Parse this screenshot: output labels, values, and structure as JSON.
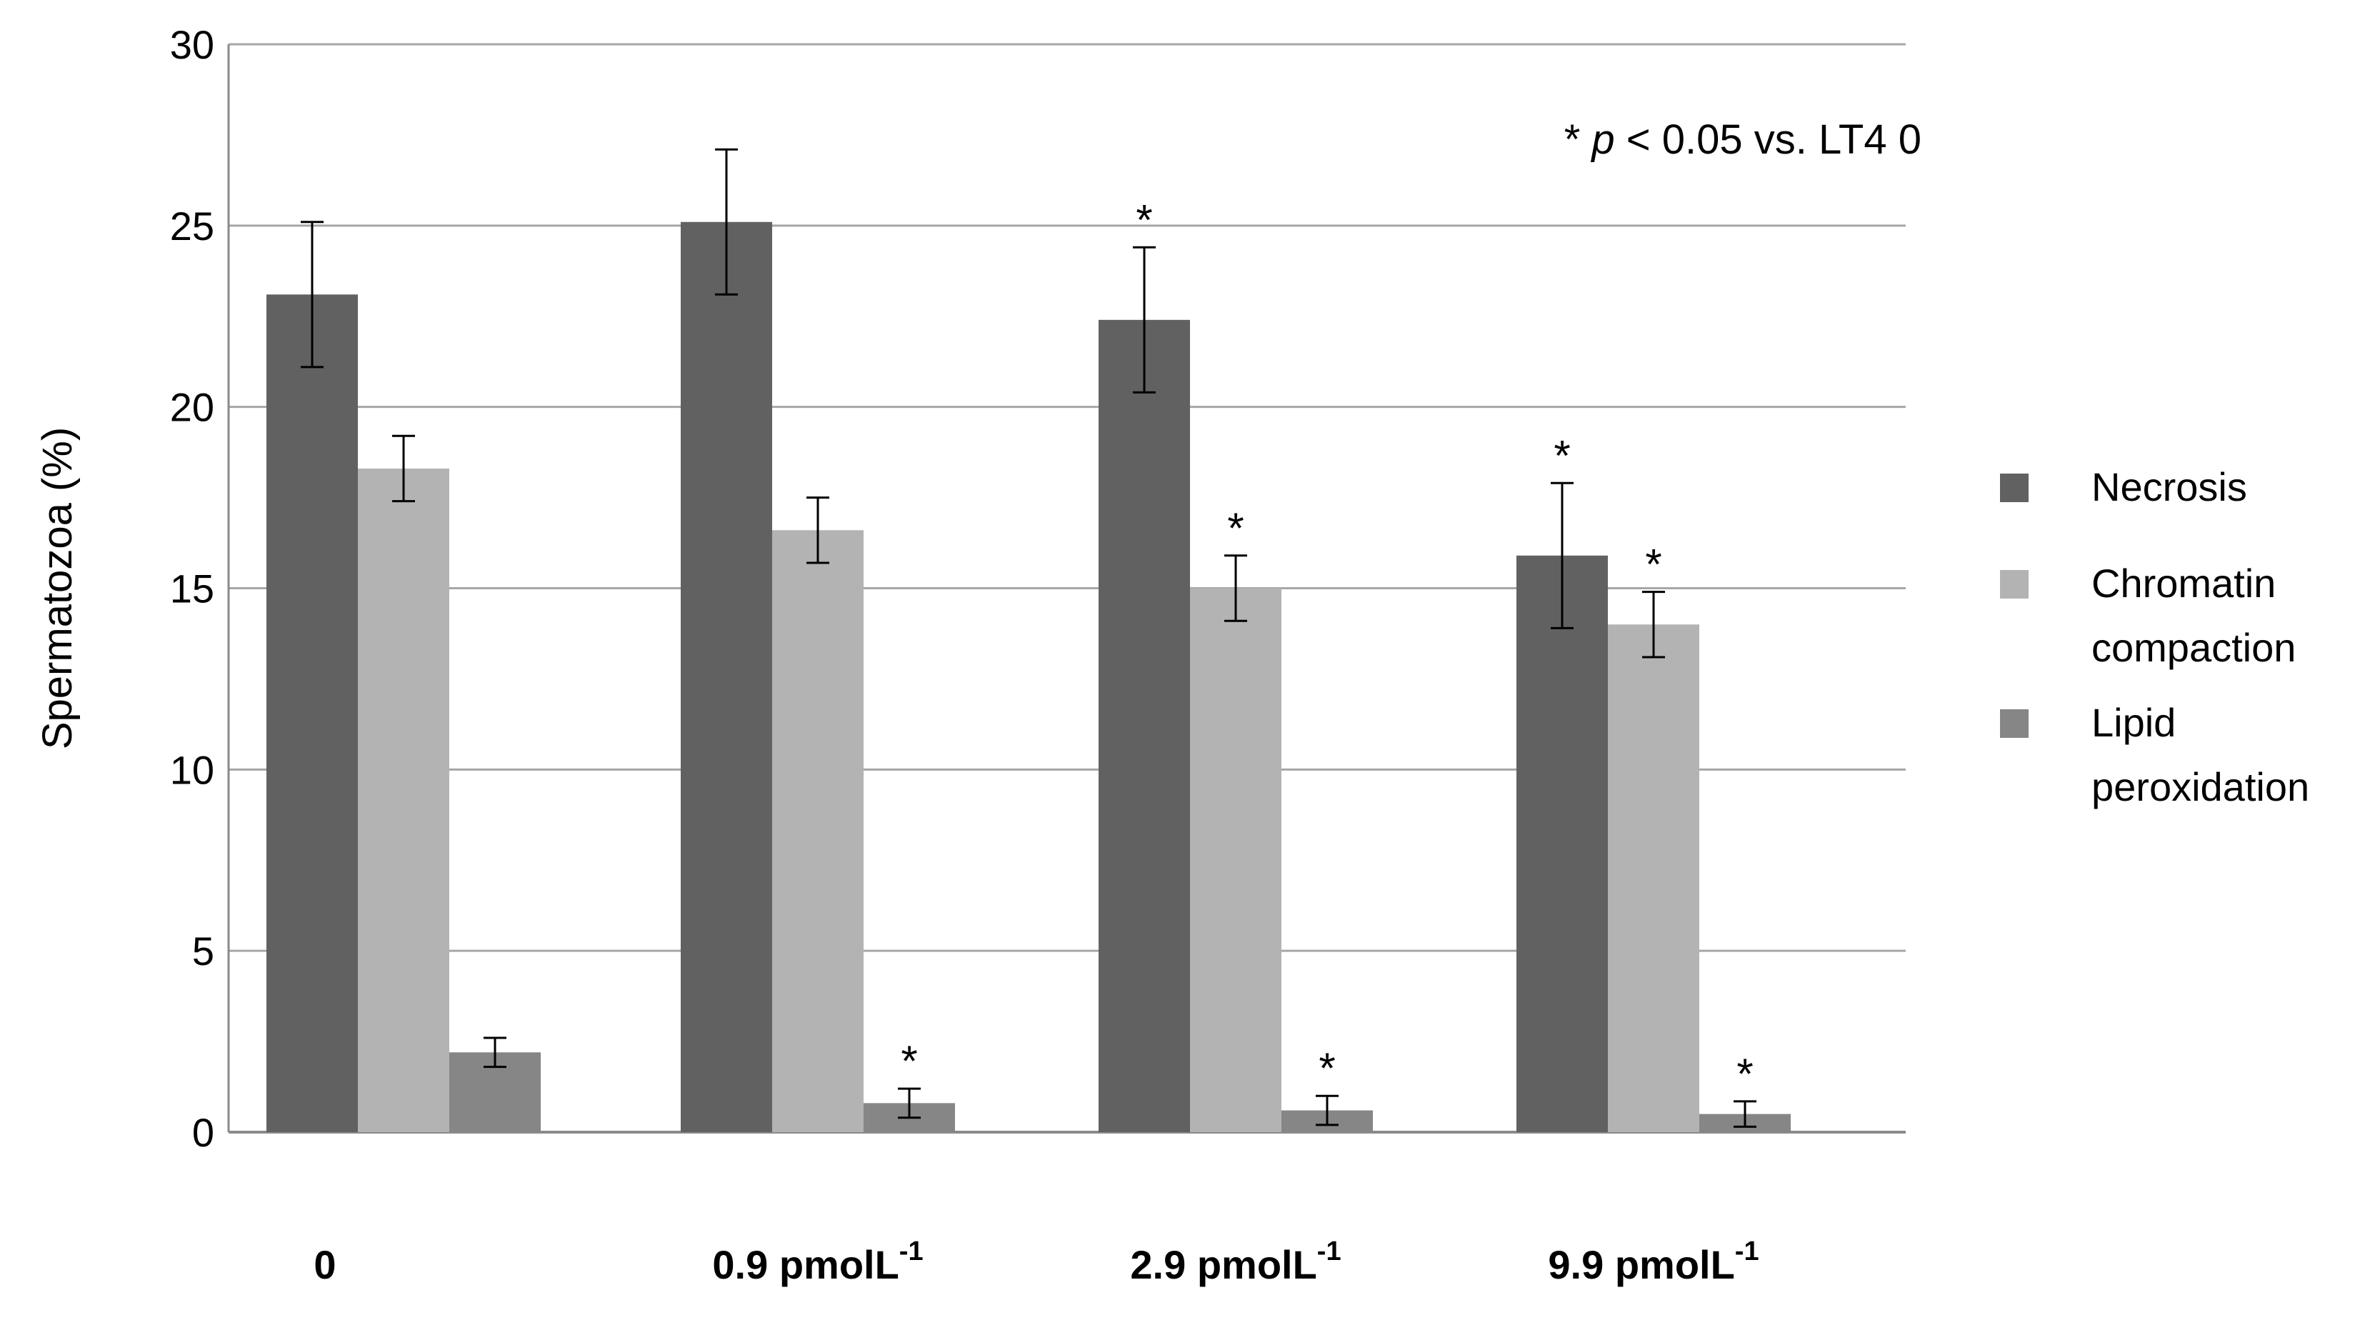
{
  "chart_data": {
    "type": "bar",
    "title": "",
    "xlabel": "",
    "ylabel": "Spermatozoa (%)",
    "ylim": [
      0,
      30
    ],
    "yticks": [
      0,
      5,
      10,
      15,
      20,
      25,
      30
    ],
    "grid": true,
    "legend_position": "right",
    "annotation": {
      "star": "*",
      "p": "p",
      "rest": " < 0.05 vs. LT4 0"
    },
    "significance_marker": "*",
    "categories": [
      {
        "base": "0",
        "sup": ""
      },
      {
        "base": "0.9 pmolL",
        "sup": "-1"
      },
      {
        "base": "2.9 pmolL",
        "sup": "-1"
      },
      {
        "base": "9.9 pmolL",
        "sup": "-1"
      }
    ],
    "series": [
      {
        "name": "Necrosis",
        "name_lines": [
          "Necrosis"
        ],
        "color": "#616161",
        "values": [
          23.1,
          25.1,
          22.4,
          15.9
        ],
        "errors": [
          2.0,
          2.0,
          2.0,
          2.0
        ],
        "significant": [
          false,
          false,
          true,
          true
        ]
      },
      {
        "name": "Chromatin compaction",
        "name_lines": [
          "Chromatin",
          "compaction"
        ],
        "color": "#b3b3b3",
        "values": [
          18.3,
          16.6,
          15.0,
          14.0
        ],
        "errors": [
          0.9,
          0.9,
          0.9,
          0.9
        ],
        "significant": [
          false,
          false,
          true,
          true
        ]
      },
      {
        "name": "Lipid peroxidation",
        "name_lines": [
          "Lipid",
          "peroxidation"
        ],
        "color": "#868686",
        "values": [
          2.2,
          0.8,
          0.6,
          0.5
        ],
        "errors": [
          0.4,
          0.4,
          0.4,
          0.35
        ],
        "significant": [
          false,
          true,
          true,
          true
        ]
      }
    ]
  }
}
